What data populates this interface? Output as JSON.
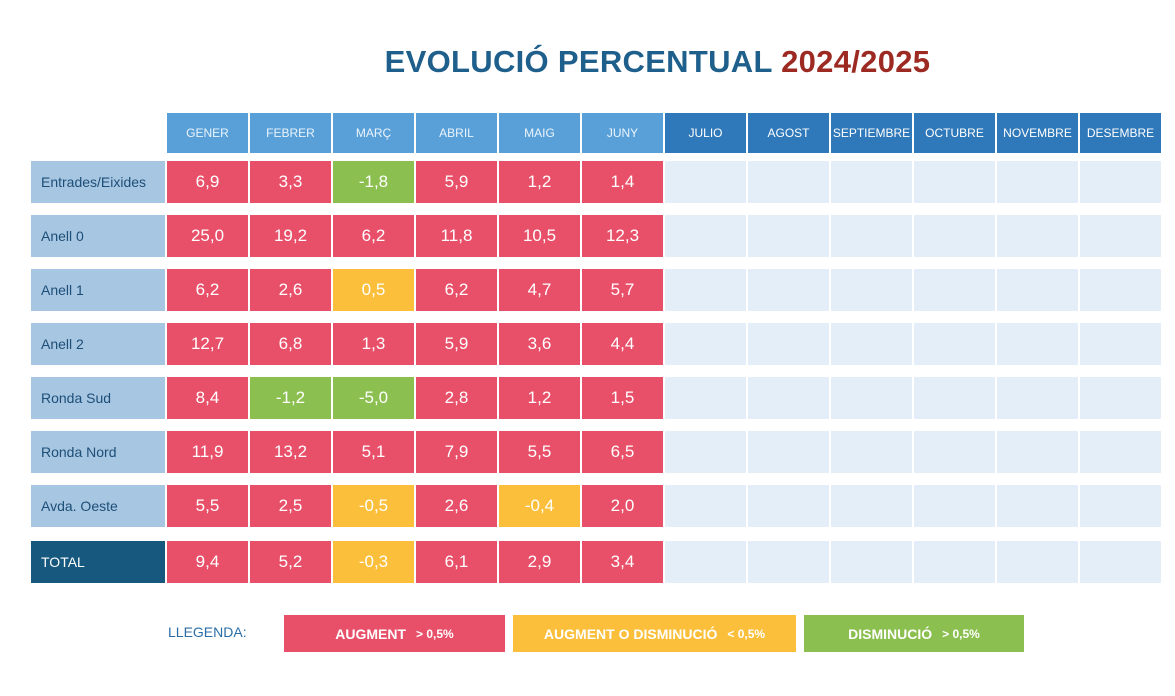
{
  "title": {
    "part1": "EVOLUCIÓ PERCENTUAL",
    "part2": "2024/2025"
  },
  "months": [
    "GENER",
    "FEBRER",
    "MARÇ",
    "ABRIL",
    "MAIG",
    "JUNY",
    "JULIO",
    "AGOST",
    "SEPTIEMBRE",
    "OCTUBRE",
    "NOVEMBRE",
    "DESEMBRE"
  ],
  "rows": [
    {
      "label": "Entrades/Eixides",
      "values": [
        "6,9",
        "3,3",
        "-1,8",
        "5,9",
        "1,2",
        "1,4"
      ],
      "status": [
        "augment",
        "augment",
        "disminucio",
        "augment",
        "augment",
        "augment"
      ]
    },
    {
      "label": "Anell 0",
      "values": [
        "25,0",
        "19,2",
        "6,2",
        "11,8",
        "10,5",
        "12,3"
      ],
      "status": [
        "augment",
        "augment",
        "augment",
        "augment",
        "augment",
        "augment"
      ]
    },
    {
      "label": "Anell 1",
      "values": [
        "6,2",
        "2,6",
        "0,5",
        "6,2",
        "4,7",
        "5,7"
      ],
      "status": [
        "augment",
        "augment",
        "neutral",
        "augment",
        "augment",
        "augment"
      ]
    },
    {
      "label": "Anell 2",
      "values": [
        "12,7",
        "6,8",
        "1,3",
        "5,9",
        "3,6",
        "4,4"
      ],
      "status": [
        "augment",
        "augment",
        "augment",
        "augment",
        "augment",
        "augment"
      ]
    },
    {
      "label": "Ronda Sud",
      "values": [
        "8,4",
        "-1,2",
        "-5,0",
        "2,8",
        "1,2",
        "1,5"
      ],
      "status": [
        "augment",
        "disminucio",
        "disminucio",
        "augment",
        "augment",
        "augment"
      ]
    },
    {
      "label": "Ronda Nord",
      "values": [
        "11,9",
        "13,2",
        "5,1",
        "7,9",
        "5,5",
        "6,5"
      ],
      "status": [
        "augment",
        "augment",
        "augment",
        "augment",
        "augment",
        "augment"
      ]
    },
    {
      "label": "Avda. Oeste",
      "values": [
        "5,5",
        "2,5",
        "-0,5",
        "2,6",
        "-0,4",
        "2,0"
      ],
      "status": [
        "augment",
        "augment",
        "neutral",
        "augment",
        "neutral",
        "augment"
      ]
    },
    {
      "label": "TOTAL",
      "values": [
        "9,4",
        "5,2",
        "-0,3",
        "6,1",
        "2,9",
        "3,4"
      ],
      "status": [
        "augment",
        "augment",
        "neutral",
        "augment",
        "augment",
        "augment"
      ],
      "total": true
    }
  ],
  "legend": {
    "label": "LLEGENDA:",
    "items": [
      {
        "text": "AUGMENT",
        "cond": "> 0,5%",
        "color": "#e8506a"
      },
      {
        "text": "AUGMENT O DISMINUCIÓ",
        "cond": "< 0,5%",
        "color": "#fbbf3b"
      },
      {
        "text": "DISMINUCIÓ",
        "cond": "> 0,5%",
        "color": "#8bbf4f"
      }
    ]
  },
  "colors": {
    "augment": "#e8506a",
    "neutral": "#fbbf3b",
    "disminucio": "#8bbf4f",
    "empty": "#e3eef9"
  }
}
